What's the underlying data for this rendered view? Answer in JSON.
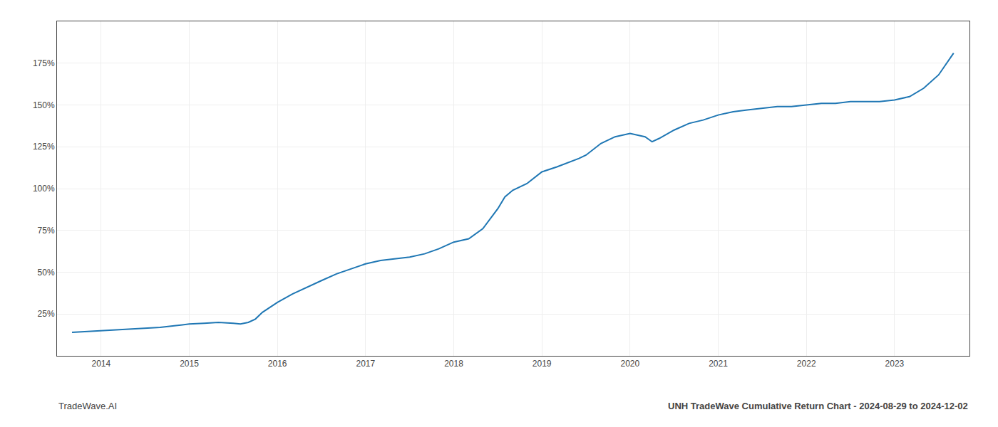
{
  "chart_data": {
    "type": "line",
    "annotations": [
      "TradeWave.AI",
      "UNH TradeWave Cumulative Return Chart - 2024-08-29 to 2024-12-02"
    ],
    "x": [
      2013.67,
      2013.83,
      2014.0,
      2014.17,
      2014.33,
      2014.5,
      2014.67,
      2014.83,
      2015.0,
      2015.17,
      2015.33,
      2015.5,
      2015.58,
      2015.67,
      2015.75,
      2015.83,
      2016.0,
      2016.17,
      2016.33,
      2016.5,
      2016.67,
      2016.83,
      2017.0,
      2017.17,
      2017.33,
      2017.5,
      2017.67,
      2017.83,
      2018.0,
      2018.08,
      2018.17,
      2018.33,
      2018.5,
      2018.58,
      2018.67,
      2018.83,
      2019.0,
      2019.17,
      2019.33,
      2019.42,
      2019.5,
      2019.67,
      2019.83,
      2020.0,
      2020.17,
      2020.25,
      2020.33,
      2020.5,
      2020.67,
      2020.83,
      2021.0,
      2021.17,
      2021.33,
      2021.5,
      2021.67,
      2021.83,
      2022.0,
      2022.17,
      2022.33,
      2022.5,
      2022.67,
      2022.83,
      2023.0,
      2023.17,
      2023.33,
      2023.5,
      2023.67
    ],
    "values": [
      14,
      14.5,
      15,
      15.5,
      16,
      16.5,
      17,
      18,
      19,
      19.5,
      20,
      19.5,
      19,
      20,
      22,
      26,
      32,
      37,
      41,
      45,
      49,
      52,
      55,
      57,
      58,
      59,
      61,
      64,
      68,
      69,
      70,
      76,
      88,
      95,
      99,
      103,
      110,
      113,
      116,
      118,
      120,
      127,
      131,
      133,
      131,
      128,
      130,
      135,
      139,
      141,
      144,
      146,
      147,
      148,
      149,
      149,
      150,
      151,
      151,
      152,
      152,
      152,
      153,
      155,
      160,
      168,
      181
    ],
    "xlim": [
      2013.5,
      2023.85
    ],
    "ylim": [
      0,
      200
    ],
    "xticks": [
      2014,
      2015,
      2016,
      2017,
      2018,
      2019,
      2020,
      2021,
      2022,
      2023
    ],
    "yticks": [
      {
        "value": 25,
        "label": "25%"
      },
      {
        "value": 50,
        "label": "50%"
      },
      {
        "value": 75,
        "label": "75%"
      },
      {
        "value": 100,
        "label": "100%"
      },
      {
        "value": 125,
        "label": "125%"
      },
      {
        "value": 150,
        "label": "150%"
      },
      {
        "value": 175,
        "label": "175%"
      }
    ],
    "grid": true
  }
}
